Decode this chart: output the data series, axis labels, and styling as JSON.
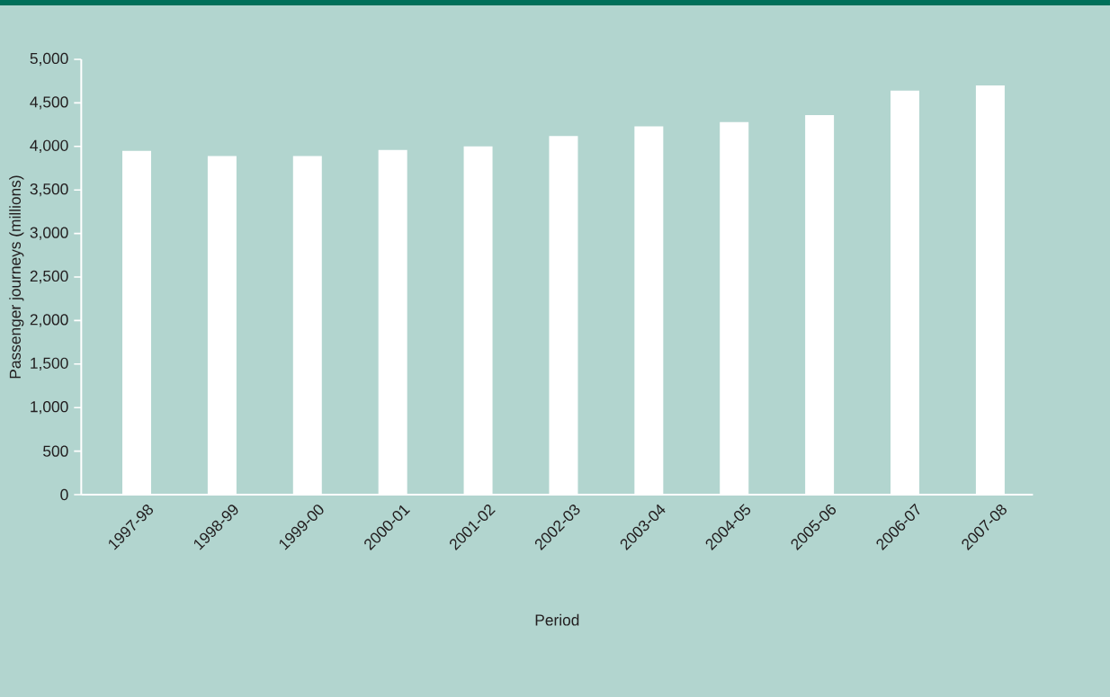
{
  "chart_data": {
    "type": "bar",
    "xlabel": "Period",
    "ylabel": "Passenger journeys (millions)",
    "categories": [
      "1997-98",
      "1998-99",
      "1999-00",
      "2000-01",
      "2001-02",
      "2002-03",
      "2003-04",
      "2004-05",
      "2005-06",
      "2006-07",
      "2007-08"
    ],
    "values": [
      3950,
      3890,
      3890,
      3960,
      4000,
      4120,
      4230,
      4280,
      4360,
      4640,
      4700
    ],
    "color": "#ffffff",
    "ylim": [
      0,
      5000
    ],
    "yticks": [
      0,
      500,
      {
        "value": 1000,
        "label": "1,000"
      },
      {
        "value": 1500,
        "label": "1,500"
      },
      {
        "value": 2000,
        "label": "2,000"
      },
      {
        "value": 2500,
        "label": "2,500"
      },
      {
        "value": 3000,
        "label": "3,000"
      },
      {
        "value": 3500,
        "label": "3,500"
      },
      {
        "value": 4000,
        "label": "4,000"
      },
      {
        "value": 4500,
        "label": "4,500"
      },
      {
        "value": 5000,
        "label": "5,000"
      }
    ],
    "grid": false
  }
}
